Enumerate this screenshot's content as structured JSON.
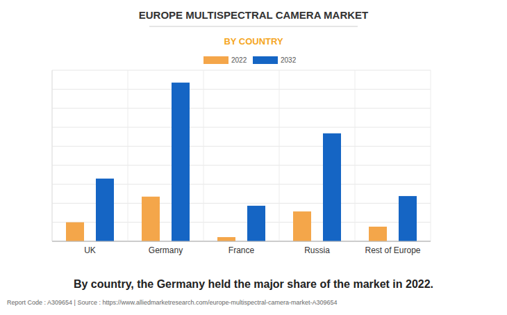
{
  "chart_data": {
    "type": "bar",
    "title": "EUROPE MULTISPECTRAL CAMERA MARKET",
    "subtitle": "BY COUNTRY",
    "categories": [
      "UK",
      "Germany",
      "France",
      "Russia",
      "Rest of Europe"
    ],
    "series": [
      {
        "name": "2022",
        "color": "#f4a64a",
        "values": [
          1.0,
          2.35,
          0.22,
          1.57,
          0.77
        ]
      },
      {
        "name": "2032",
        "color": "#1565c4",
        "values": [
          3.3,
          8.35,
          1.87,
          5.68,
          2.38
        ]
      }
    ],
    "ylim": [
      0,
      9
    ],
    "yticks": [
      0,
      1,
      2,
      3,
      4,
      5,
      6,
      7,
      8,
      9
    ],
    "grid": true,
    "tick_labels": "x",
    "legend": "top",
    "annotations": [
      "By country, the Germany held the major share of the market in 2022.",
      "Report Code : A309654  |  Source : https://www.alliedmarketresearch.com/europe-multispectral-camera-market-A309654"
    ]
  }
}
